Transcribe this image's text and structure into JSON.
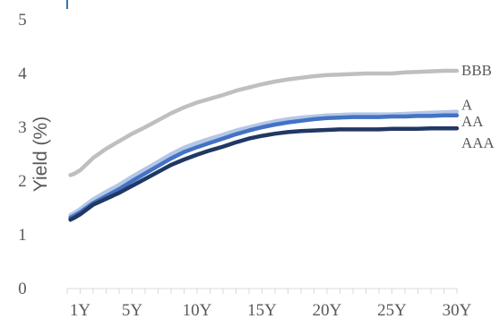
{
  "chart_data": {
    "type": "line",
    "title": "",
    "xlabel": "",
    "ylabel": "Yield (%)",
    "ylim": [
      0,
      5
    ],
    "yticks": [
      0,
      1,
      2,
      3,
      4,
      5
    ],
    "xlim": [
      0,
      30
    ],
    "x": [
      0.25,
      0.5,
      1,
      2,
      3,
      4,
      5,
      6,
      7,
      8,
      9,
      10,
      11,
      12,
      13,
      14,
      15,
      16,
      17,
      18,
      19,
      20,
      21,
      22,
      23,
      24,
      25,
      26,
      27,
      28,
      29,
      30
    ],
    "xticks": [
      {
        "value": 1,
        "label": "1Y"
      },
      {
        "value": 5,
        "label": "5Y"
      },
      {
        "value": 10,
        "label": "10Y"
      },
      {
        "value": 15,
        "label": "15Y"
      },
      {
        "value": 20,
        "label": "20Y"
      },
      {
        "value": 25,
        "label": "25Y"
      },
      {
        "value": 30,
        "label": "30Y"
      }
    ],
    "grid": false,
    "legend": "inline-right",
    "series": [
      {
        "name": "BBB",
        "color": "#bfbfbf",
        "values": [
          2.11,
          2.13,
          2.2,
          2.43,
          2.6,
          2.74,
          2.88,
          3.0,
          3.13,
          3.26,
          3.37,
          3.46,
          3.53,
          3.6,
          3.68,
          3.74,
          3.8,
          3.85,
          3.89,
          3.92,
          3.95,
          3.97,
          3.98,
          3.99,
          4.0,
          4.0,
          4.0,
          4.02,
          4.03,
          4.04,
          4.05,
          4.05
        ]
      },
      {
        "name": "A",
        "color": "#b4c7e7",
        "values": [
          1.37,
          1.4,
          1.48,
          1.66,
          1.8,
          1.93,
          2.08,
          2.22,
          2.36,
          2.5,
          2.62,
          2.71,
          2.79,
          2.86,
          2.94,
          3.0,
          3.06,
          3.11,
          3.15,
          3.18,
          3.2,
          3.22,
          3.23,
          3.24,
          3.24,
          3.24,
          3.24,
          3.25,
          3.26,
          3.27,
          3.28,
          3.29
        ]
      },
      {
        "name": "AA",
        "color": "#4472c4",
        "values": [
          1.32,
          1.35,
          1.42,
          1.59,
          1.72,
          1.85,
          2.0,
          2.14,
          2.28,
          2.42,
          2.54,
          2.63,
          2.71,
          2.79,
          2.87,
          2.94,
          3.0,
          3.05,
          3.09,
          3.12,
          3.15,
          3.17,
          3.18,
          3.19,
          3.19,
          3.19,
          3.2,
          3.2,
          3.21,
          3.21,
          3.22,
          3.22
        ]
      },
      {
        "name": "AAA",
        "color": "#203864",
        "values": [
          1.28,
          1.31,
          1.38,
          1.56,
          1.67,
          1.78,
          1.91,
          2.04,
          2.17,
          2.3,
          2.4,
          2.49,
          2.57,
          2.64,
          2.72,
          2.79,
          2.84,
          2.88,
          2.91,
          2.93,
          2.94,
          2.95,
          2.96,
          2.96,
          2.96,
          2.96,
          2.97,
          2.97,
          2.97,
          2.98,
          2.98,
          2.98
        ]
      }
    ]
  }
}
